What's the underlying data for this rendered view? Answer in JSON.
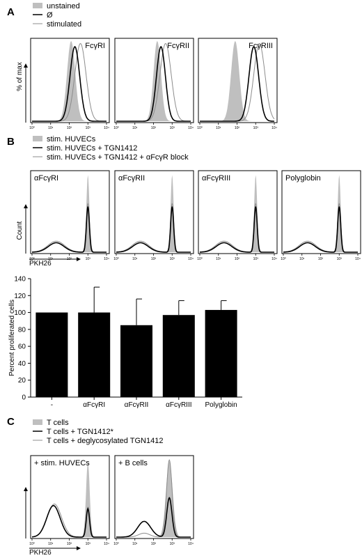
{
  "panel_labels": [
    "A",
    "B",
    "C"
  ],
  "colors": {
    "fill": "#bfbfbf",
    "black": "#000000",
    "gray_line": "#8c8c8c",
    "bar": "#000000"
  },
  "chart_data": [
    {
      "type": "area",
      "panel": "A",
      "legend": [
        {
          "label": "unstained",
          "style": "fill"
        },
        {
          "label": "Ø",
          "style": "black"
        },
        {
          "label": "stimulated",
          "style": "gray"
        }
      ],
      "ylabel": "% of max",
      "x_scale": "log",
      "xlim": [
        1,
        10000
      ],
      "x_ticks": [
        "10⁰",
        "10¹",
        "10²",
        "10³",
        "10⁴"
      ],
      "subplots": [
        {
          "title": "FcγRI",
          "unstained": {
            "peak": 2.1,
            "width": 0.22
          },
          "baseline": {
            "peak": 2.3,
            "width": 0.26
          },
          "stimulated": {
            "peak": 2.6,
            "width": 0.3
          }
        },
        {
          "title": "FcγRII",
          "unstained": {
            "peak": 2.2,
            "width": 0.2
          },
          "baseline": {
            "peak": 2.4,
            "width": 0.24
          },
          "stimulated": {
            "peak": 2.65,
            "width": 0.3
          }
        },
        {
          "title": "FcγRIII",
          "unstained": {
            "peak": 1.9,
            "width": 0.22
          },
          "baseline": {
            "peak": 2.9,
            "width": 0.26
          },
          "stimulated": {
            "peak": 3.2,
            "width": 0.3
          }
        }
      ]
    },
    {
      "type": "area",
      "panel": "B",
      "legend": [
        {
          "label": "stim. HUVECs",
          "style": "fill"
        },
        {
          "label": "stim. HUVECs + TGN1412",
          "style": "black"
        },
        {
          "label": "stim. HUVECs + TGN1412 + αFcγR block",
          "style": "gray"
        }
      ],
      "ylabel": "Count",
      "xlabel": "PKH26",
      "x_scale": "log",
      "xlim": [
        1,
        10000
      ],
      "x_ticks": [
        "10⁰",
        "10¹",
        "10²",
        "10³",
        "10⁴"
      ],
      "subplots": [
        {
          "title": "αFcγRI"
        },
        {
          "title": "αFcγRII"
        },
        {
          "title": "αFcγRIII"
        },
        {
          "title": "Polyglobin"
        }
      ]
    },
    {
      "type": "bar",
      "panel": "B",
      "categories": [
        "-",
        "αFcγRI",
        "αFcγRII",
        "αFcγRIII",
        "Polyglobin"
      ],
      "values": [
        100,
        100,
        85,
        97,
        103
      ],
      "errors": [
        0,
        30,
        31,
        17,
        11
      ],
      "ylabel": "Percent proliferated cells",
      "ylim": [
        0,
        140
      ],
      "y_ticks": [
        0,
        20,
        40,
        60,
        80,
        100,
        120,
        140
      ]
    },
    {
      "type": "area",
      "panel": "C",
      "legend": [
        {
          "label": "T cells",
          "style": "fill"
        },
        {
          "label": "T cells + TGN1412*",
          "style": "black"
        },
        {
          "label": "T cells + deglycosylated TGN1412",
          "style": "gray"
        }
      ],
      "xlabel": "PKH26",
      "x_scale": "log",
      "xlim": [
        1,
        10000
      ],
      "x_ticks": [
        "10⁰",
        "10¹",
        "10²",
        "10³",
        "10⁴"
      ],
      "subplots": [
        {
          "title": "+ stim. HUVECs"
        },
        {
          "title": "+ B cells"
        }
      ]
    }
  ]
}
